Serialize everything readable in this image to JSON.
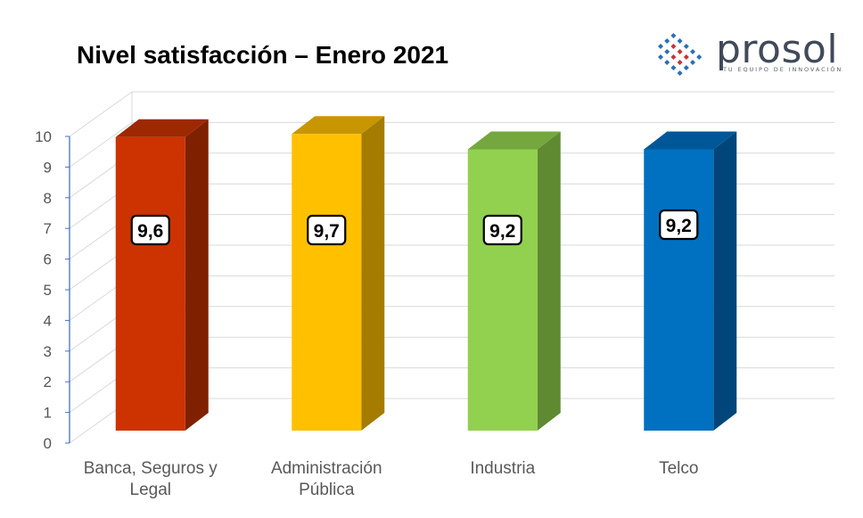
{
  "chart_data": {
    "type": "bar",
    "title": "Nivel satisfacción – Enero 2021",
    "categories": [
      [
        "Banca, Seguros y",
        "Legal"
      ],
      [
        "Administración",
        "Pública"
      ],
      [
        "Industria"
      ],
      [
        "Telco"
      ]
    ],
    "values": [
      9.6,
      9.7,
      9.2,
      9.2
    ],
    "data_labels": [
      "9,6",
      "9,7",
      "9,2",
      "9,2"
    ],
    "colors": [
      {
        "front": "#cc3300",
        "side": "#7f2000",
        "top": "#9e2800"
      },
      {
        "front": "#ffc000",
        "side": "#a57c00",
        "top": "#c79600"
      },
      {
        "front": "#92d050",
        "side": "#5f8a32",
        "top": "#74a83e"
      },
      {
        "front": "#0070c0",
        "side": "#00467a",
        "top": "#005797"
      }
    ],
    "ylim": [
      0,
      10
    ],
    "yticks": [
      "0",
      "1",
      "2",
      "3",
      "4",
      "5",
      "6",
      "7",
      "8",
      "9",
      "10"
    ],
    "xlabel": "",
    "ylabel": "",
    "grid": true,
    "style": "3d-column"
  },
  "logo": {
    "name": "prosol",
    "tagline": "TU EQUIPO DE INNOVACIÓN",
    "colors": [
      "#2c6fb2",
      "#c8333a",
      "#404a5a"
    ]
  }
}
